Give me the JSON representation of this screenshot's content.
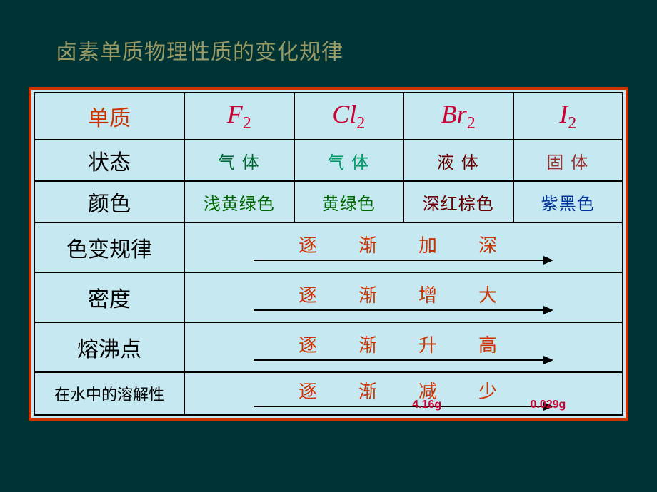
{
  "title": "卤素单质物理性质的变化规律",
  "header": {
    "label": "单质",
    "elements": [
      {
        "base": "F",
        "sub": "2"
      },
      {
        "base": "Cl",
        "sub": "2"
      },
      {
        "base": "Br",
        "sub": "2"
      },
      {
        "base": "I",
        "sub": "2"
      }
    ]
  },
  "rows": {
    "state": {
      "label": "状态",
      "values": [
        {
          "text": "气 体",
          "cls": "val-green"
        },
        {
          "text": "气 体",
          "cls": "val-teal"
        },
        {
          "text": "液 体",
          "cls": "val-darkred"
        },
        {
          "text": "固 体",
          "cls": "val-brown"
        }
      ]
    },
    "color": {
      "label": "颜色",
      "values": [
        {
          "text": "浅黄绿色",
          "cls": "val-green2"
        },
        {
          "text": "黄绿色",
          "cls": "val-green2"
        },
        {
          "text": "深红棕色",
          "cls": "val-brownred"
        },
        {
          "text": "紫黑色",
          "cls": "val-blue"
        }
      ]
    },
    "trend_color": {
      "label": "色变规律",
      "text": "逐　渐　加　深"
    },
    "density": {
      "label": "密度",
      "text": "逐　渐　增　大"
    },
    "melt": {
      "label": "熔沸点",
      "text": "逐　渐　升　高"
    },
    "solubility": {
      "label": "在水中的溶解性",
      "text": "逐　渐　减　少"
    }
  },
  "footnotes": {
    "f1": "4.16g",
    "f2": "0.029g"
  }
}
